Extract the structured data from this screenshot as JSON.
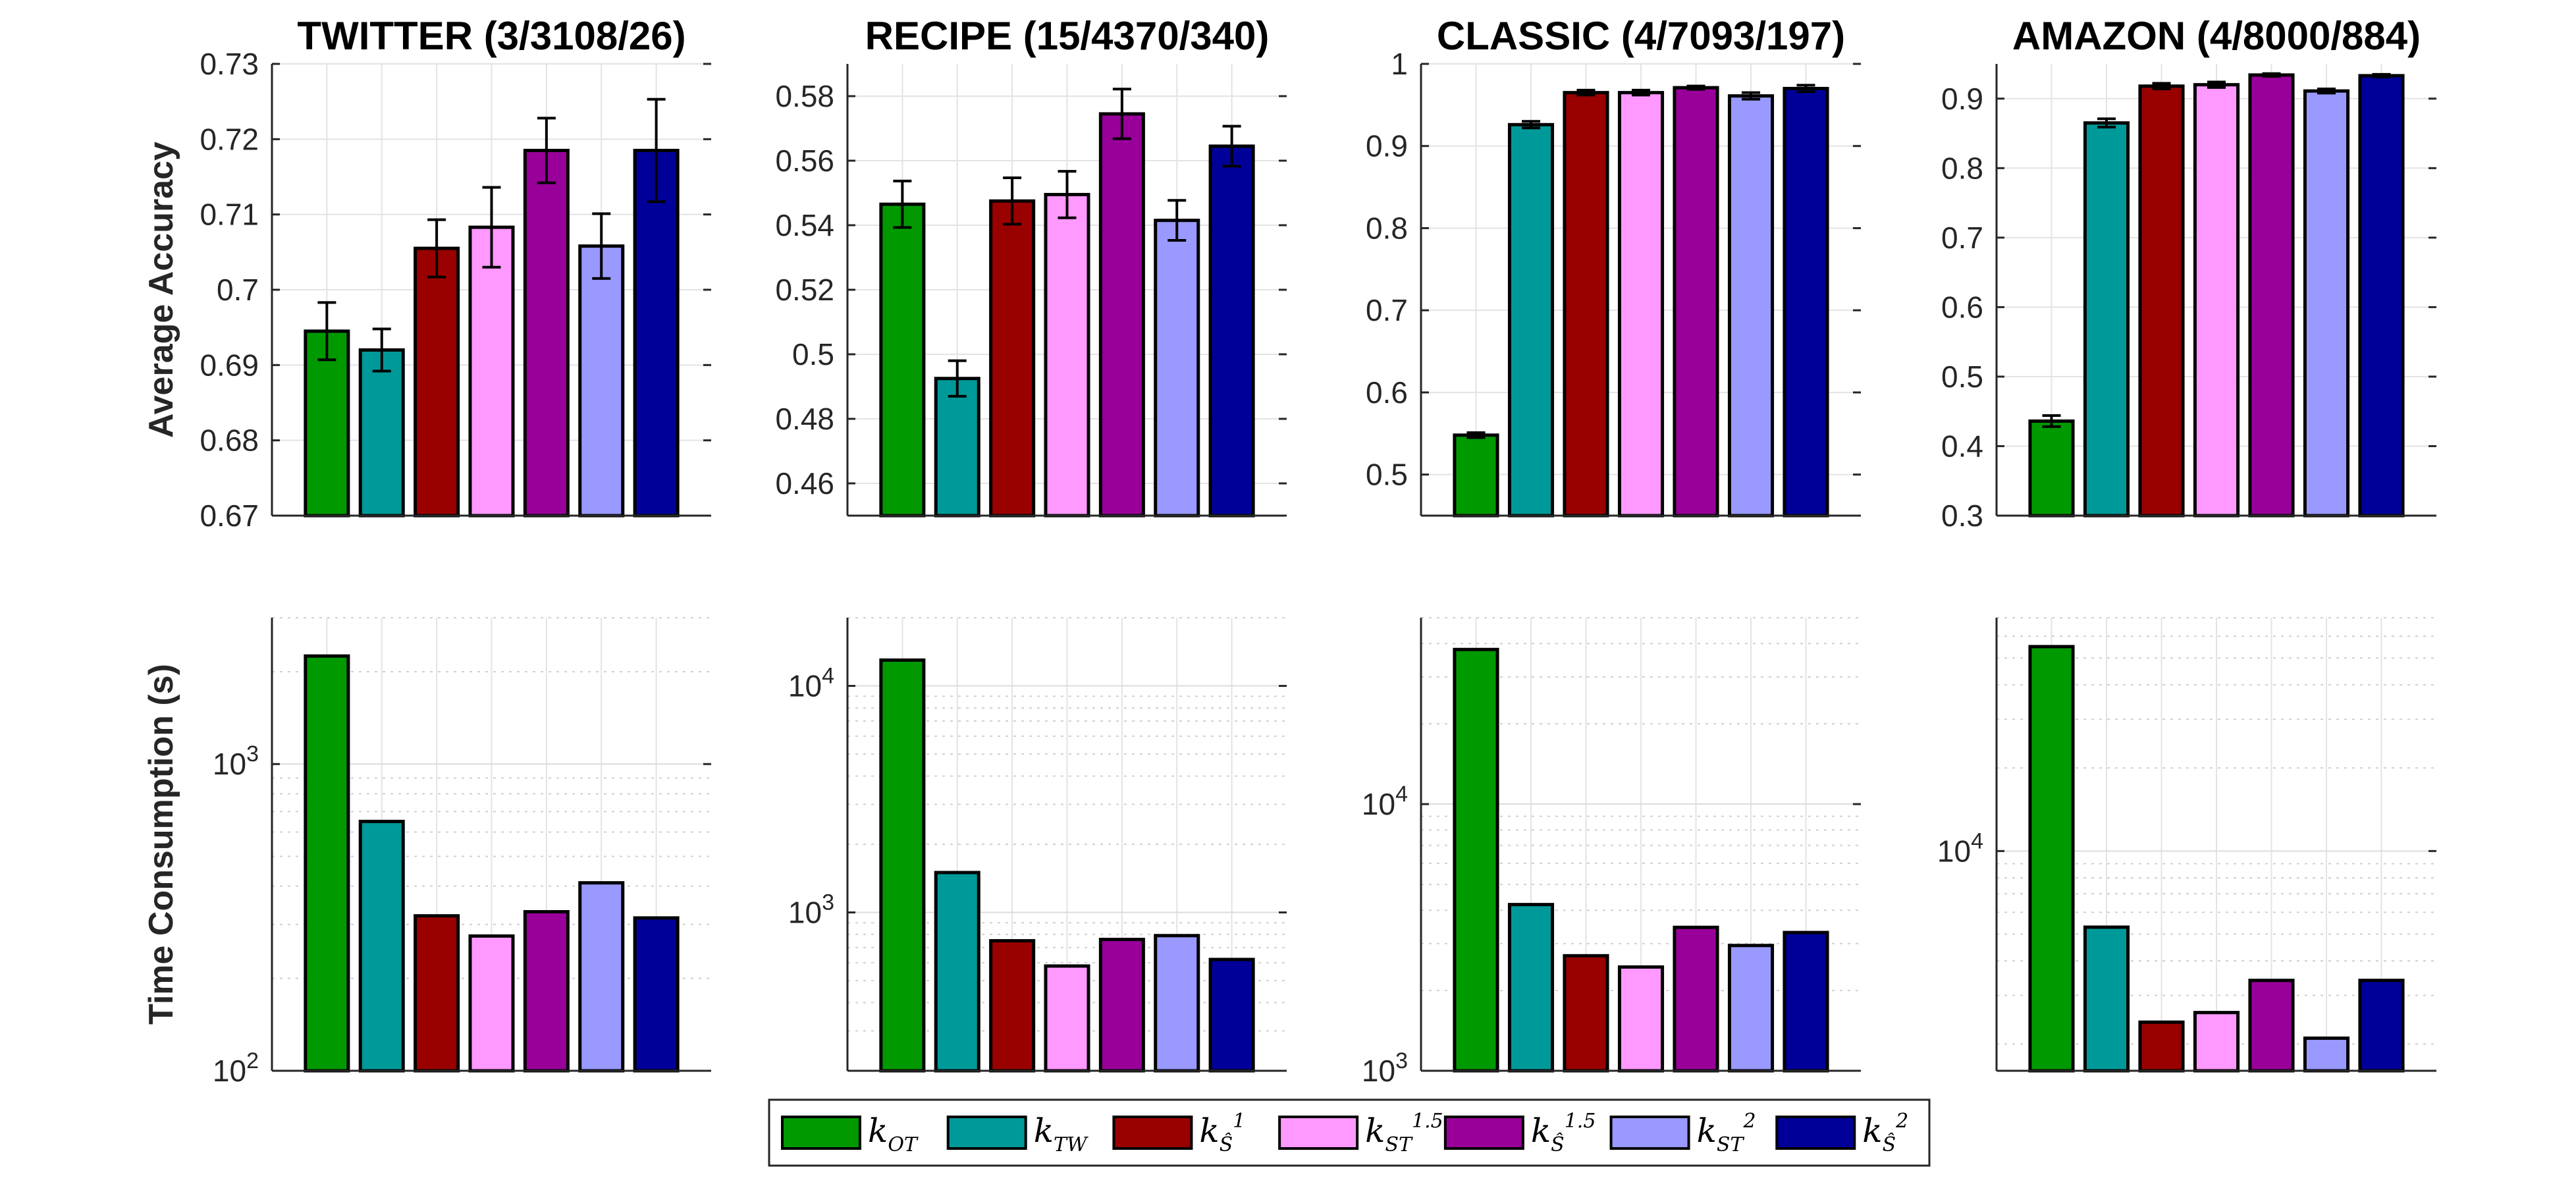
{
  "series_styles": [
    {
      "label": "k",
      "sub": "OT",
      "sup": "",
      "color": "#009900"
    },
    {
      "label": "k",
      "sub": "TW",
      "sup": "",
      "color": "#009999"
    },
    {
      "label": "k",
      "sub": "Ŝ",
      "sup": "1",
      "color": "#990000"
    },
    {
      "label": "k",
      "sub": "ST",
      "sup": "1.5",
      "color": "#ff99ff"
    },
    {
      "label": "k",
      "sub": "Ŝ",
      "sup": "1.5",
      "color": "#990099"
    },
    {
      "label": "k",
      "sub": "ST",
      "sup": "2",
      "color": "#9999ff"
    },
    {
      "label": "k",
      "sub": "Ŝ",
      "sup": "2",
      "color": "#000099"
    }
  ],
  "legend_sublabels": [
    "OT",
    "TW",
    "Ŝ₁¹",
    "ST₁.₅¹·⁵",
    "Ŝ₁.₅¹·⁵",
    "ST₂²",
    "Ŝ₂²"
  ],
  "chart_data": [
    {
      "type": "bar",
      "title": "TWITTER (3/3108/26)",
      "ylabel": "Average Accuracy",
      "ylim": [
        0.67,
        0.73
      ],
      "yticks": [
        "0.67",
        "0.68",
        "0.69",
        "0.7",
        "0.71",
        "0.72",
        "0.73"
      ],
      "ytick_values": [
        0.67,
        0.68,
        0.69,
        0.7,
        0.71,
        0.72,
        0.73
      ],
      "values": [
        0.6945,
        0.692,
        0.7055,
        0.7083,
        0.7185,
        0.7058,
        0.7185
      ],
      "errors": [
        0.0038,
        0.0028,
        0.0038,
        0.0053,
        0.0043,
        0.0043,
        0.0068
      ],
      "grid": true
    },
    {
      "type": "bar",
      "title": "RECIPE (15/4370/340)",
      "ylabel": "",
      "ylim": [
        0.45,
        0.59
      ],
      "yticks": [
        "0.46",
        "0.48",
        "0.5",
        "0.52",
        "0.54",
        "0.56",
        "0.58"
      ],
      "ytick_values": [
        0.46,
        0.48,
        0.5,
        0.52,
        0.54,
        0.56,
        0.58
      ],
      "values": [
        0.5465,
        0.4925,
        0.5475,
        0.5495,
        0.5745,
        0.5415,
        0.5645
      ],
      "errors": [
        0.0072,
        0.0055,
        0.0072,
        0.0072,
        0.0077,
        0.0062,
        0.0062
      ],
      "grid": true
    },
    {
      "type": "bar",
      "title": "CLASSIC (4/7093/197)",
      "ylabel": "",
      "ylim": [
        0.45,
        1.0
      ],
      "yticks": [
        "0.5",
        "0.6",
        "0.7",
        "0.8",
        "0.9",
        "1"
      ],
      "ytick_values": [
        0.5,
        0.6,
        0.7,
        0.8,
        0.9,
        1.0
      ],
      "values": [
        0.548,
        0.926,
        0.965,
        0.965,
        0.971,
        0.961,
        0.97
      ],
      "errors": [
        0.003,
        0.004,
        0.003,
        0.003,
        0.002,
        0.004,
        0.004
      ],
      "grid": true
    },
    {
      "type": "bar",
      "title": "AMAZON (4/8000/884)",
      "ylabel": "",
      "ylim": [
        0.3,
        0.95
      ],
      "yticks": [
        "0.3",
        "0.4",
        "0.5",
        "0.6",
        "0.7",
        "0.8",
        "0.9"
      ],
      "ytick_values": [
        0.3,
        0.4,
        0.5,
        0.6,
        0.7,
        0.8,
        0.9
      ],
      "values": [
        0.436,
        0.865,
        0.918,
        0.92,
        0.934,
        0.911,
        0.933
      ],
      "errors": [
        0.008,
        0.006,
        0.004,
        0.004,
        0.002,
        0.003,
        0.002
      ],
      "grid": true
    },
    {
      "type": "bar",
      "title": "",
      "ylabel": "Time Consumption (s)",
      "yscale": "log",
      "ylim": [
        100,
        3000
      ],
      "yticks": [
        "10",
        "10"
      ],
      "ytick_exponents": [
        "2",
        "3"
      ],
      "ytick_values": [
        100,
        1000
      ],
      "values": [
        2250,
        650,
        320,
        275,
        330,
        410,
        315
      ],
      "grid": true
    },
    {
      "type": "bar",
      "title": "",
      "ylabel": "",
      "yscale": "log",
      "ylim": [
        200,
        20000
      ],
      "yticks": [
        "10",
        "10"
      ],
      "ytick_exponents": [
        "3",
        "4"
      ],
      "ytick_values": [
        1000,
        10000
      ],
      "values": [
        13000,
        1500,
        750,
        580,
        760,
        790,
        620
      ],
      "grid": true
    },
    {
      "type": "bar",
      "title": "",
      "ylabel": "",
      "yscale": "log",
      "ylim": [
        1000,
        50000
      ],
      "yticks": [
        "10",
        "10"
      ],
      "ytick_exponents": [
        "3",
        "4"
      ],
      "ytick_values": [
        1000,
        10000
      ],
      "values": [
        38000,
        4200,
        2700,
        2450,
        3450,
        2950,
        3300
      ],
      "grid": true
    },
    {
      "type": "bar",
      "title": "",
      "ylabel": "",
      "yscale": "log",
      "ylim": [
        1600,
        70000
      ],
      "yticks": [
        "10"
      ],
      "ytick_exponents": [
        "4"
      ],
      "ytick_values": [
        10000
      ],
      "values": [
        55000,
        5300,
        2400,
        2600,
        3400,
        2100,
        3400
      ],
      "grid": true
    }
  ]
}
